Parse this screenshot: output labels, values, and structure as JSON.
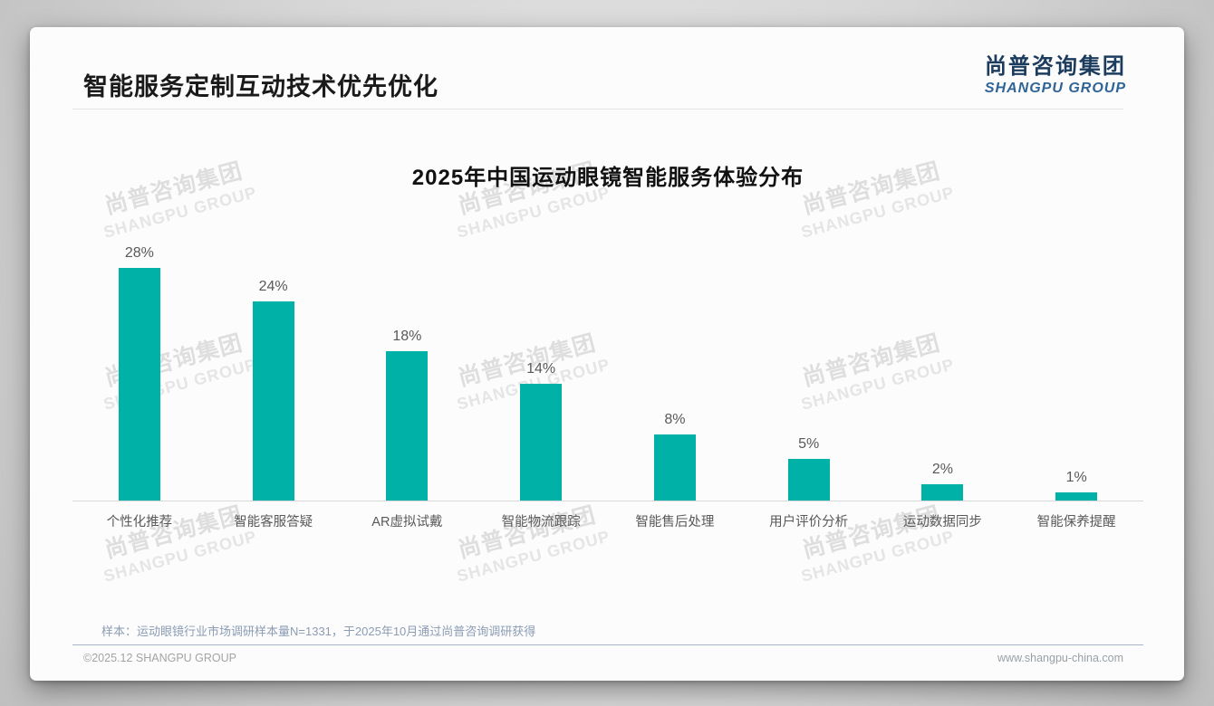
{
  "header": {
    "title": "智能服务定制互动技术优先优化"
  },
  "logo": {
    "cn": "尚普咨询集团",
    "en": "SHANGPU GROUP"
  },
  "watermark": {
    "cn": "尚普咨询集团",
    "en": "SHANGPU GROUP"
  },
  "chart_data": {
    "type": "bar",
    "title": "2025年中国运动眼镜智能服务体验分布",
    "categories": [
      "个性化推荐",
      "智能客服答疑",
      "AR虚拟试戴",
      "智能物流跟踪",
      "智能售后处理",
      "用户评价分析",
      "运动数据同步",
      "智能保养提醒"
    ],
    "values": [
      28,
      24,
      18,
      14,
      8,
      5,
      2,
      1
    ],
    "unit": "%",
    "bar_color": "#00b1a8",
    "value_label_color": "#595959",
    "ylim": [
      0,
      30
    ],
    "grid": false,
    "legend": false,
    "xlabel": "",
    "ylabel": ""
  },
  "footnote": "样本：运动眼镜行业市场调研样本量N=1331，于2025年10月通过尚普咨询调研获得",
  "footer": {
    "left": "©2025.12 SHANGPU GROUP",
    "right": "www.shangpu-china.com"
  }
}
